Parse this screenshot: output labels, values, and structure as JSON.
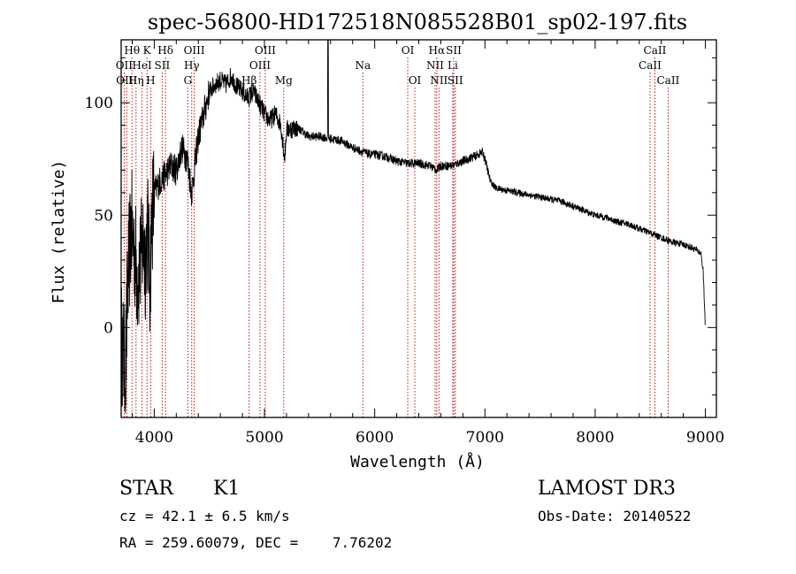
{
  "chart_data": {
    "type": "line",
    "title": "spec-56800-HD172518N085528B01_sp02-197.fits",
    "xlabel": "Wavelength (Å)",
    "ylabel": "Flux (relative)",
    "xlim": [
      3700,
      9100
    ],
    "ylim": [
      -40,
      128
    ],
    "xticks": [
      4000,
      5000,
      6000,
      7000,
      8000,
      9000
    ],
    "yticks": [
      0,
      50,
      100
    ],
    "spectrum_anchors": [
      [
        3700,
        -5
      ],
      [
        3740,
        -20
      ],
      [
        3760,
        20
      ],
      [
        3790,
        45
      ],
      [
        3820,
        35
      ],
      [
        3850,
        22
      ],
      [
        3880,
        30
      ],
      [
        3900,
        40
      ],
      [
        3920,
        30
      ],
      [
        3940,
        45
      ],
      [
        3960,
        20
      ],
      [
        3980,
        50
      ],
      [
        4000,
        60
      ],
      [
        4050,
        65
      ],
      [
        4100,
        68
      ],
      [
        4150,
        72
      ],
      [
        4200,
        70
      ],
      [
        4250,
        80
      ],
      [
        4300,
        75
      ],
      [
        4340,
        60
      ],
      [
        4400,
        85
      ],
      [
        4450,
        95
      ],
      [
        4500,
        105
      ],
      [
        4550,
        108
      ],
      [
        4600,
        110
      ],
      [
        4650,
        108
      ],
      [
        4700,
        112
      ],
      [
        4750,
        107
      ],
      [
        4800,
        105
      ],
      [
        4850,
        102
      ],
      [
        4900,
        105
      ],
      [
        4950,
        100
      ],
      [
        5000,
        95
      ],
      [
        5050,
        92
      ],
      [
        5100,
        95
      ],
      [
        5150,
        90
      ],
      [
        5183,
        75
      ],
      [
        5200,
        88
      ],
      [
        5300,
        89
      ],
      [
        5400,
        85
      ],
      [
        5500,
        85
      ],
      [
        5600,
        84
      ],
      [
        5700,
        83
      ],
      [
        5800,
        80
      ],
      [
        5900,
        78
      ],
      [
        5950,
        77
      ],
      [
        6000,
        77
      ],
      [
        6100,
        76
      ],
      [
        6200,
        74
      ],
      [
        6300,
        73
      ],
      [
        6400,
        73
      ],
      [
        6500,
        72
      ],
      [
        6563,
        70
      ],
      [
        6600,
        72
      ],
      [
        6700,
        72
      ],
      [
        6800,
        74
      ],
      [
        6900,
        76
      ],
      [
        6980,
        78
      ],
      [
        7000,
        75
      ],
      [
        7050,
        65
      ],
      [
        7100,
        62
      ],
      [
        7200,
        61
      ],
      [
        7300,
        60
      ],
      [
        7400,
        59
      ],
      [
        7500,
        58
      ],
      [
        7600,
        57
      ],
      [
        7700,
        56
      ],
      [
        7800,
        54
      ],
      [
        7900,
        52
      ],
      [
        8000,
        50
      ],
      [
        8100,
        49
      ],
      [
        8200,
        47
      ],
      [
        8300,
        46
      ],
      [
        8400,
        44
      ],
      [
        8500,
        42
      ],
      [
        8600,
        40
      ],
      [
        8700,
        38
      ],
      [
        8800,
        37
      ],
      [
        8900,
        35
      ],
      [
        8960,
        33
      ],
      [
        8980,
        25
      ],
      [
        9000,
        0
      ]
    ],
    "spike_at": 5577,
    "line_markers": [
      {
        "label": "Hθ",
        "x": 3798,
        "row": 0
      },
      {
        "label": "K",
        "x": 3934,
        "row": 0
      },
      {
        "label": "Hδ",
        "x": 4102,
        "row": 0
      },
      {
        "label": "OIII",
        "x": 4363,
        "row": 0
      },
      {
        "label": "OIII",
        "x": 5007,
        "row": 0
      },
      {
        "label": "OI",
        "x": 6300,
        "row": 0
      },
      {
        "label": "Hα",
        "x": 6563,
        "row": 0
      },
      {
        "label": "SII",
        "x": 6717,
        "row": 0
      },
      {
        "label": "CaII",
        "x": 8542,
        "row": 0
      },
      {
        "label": "OII",
        "x": 3727,
        "row": 1
      },
      {
        "label": "HeI",
        "x": 3889,
        "row": 1
      },
      {
        "label": "SII",
        "x": 4072,
        "row": 1
      },
      {
        "label": "Hγ",
        "x": 4340,
        "row": 1
      },
      {
        "label": "OIII",
        "x": 4959,
        "row": 1
      },
      {
        "label": "Na",
        "x": 5893,
        "row": 1
      },
      {
        "label": "NII",
        "x": 6548,
        "row": 1
      },
      {
        "label": "Li",
        "x": 6708,
        "row": 1
      },
      {
        "label": "CaII",
        "x": 8498,
        "row": 1
      },
      {
        "label": "OIII",
        "x": 3750,
        "row": 2
      },
      {
        "label": "Hη",
        "x": 3835,
        "row": 2
      },
      {
        "label": "H",
        "x": 3968,
        "row": 2
      },
      {
        "label": "G",
        "x": 4305,
        "row": 2
      },
      {
        "label": "Hβ",
        "x": 4861,
        "row": 2
      },
      {
        "label": "Mg",
        "x": 5175,
        "row": 2
      },
      {
        "label": "OI",
        "x": 6364,
        "row": 2
      },
      {
        "label": "NII",
        "x": 6583,
        "row": 2
      },
      {
        "label": "SII",
        "x": 6731,
        "row": 2
      },
      {
        "label": "CaII",
        "x": 8662,
        "row": 2
      }
    ]
  },
  "info": {
    "object_class": "STAR",
    "subclass": "K1",
    "survey": "LAMOST DR3",
    "cz": "cz = 42.1 ± 6.5 km/s",
    "obs_date": "Obs-Date: 20140522",
    "coords": "RA = 259.60079, DEC =    7.76202"
  },
  "colors": {
    "spectrum": "#000000",
    "marker_line": "#b30000",
    "axes": "#000000"
  }
}
